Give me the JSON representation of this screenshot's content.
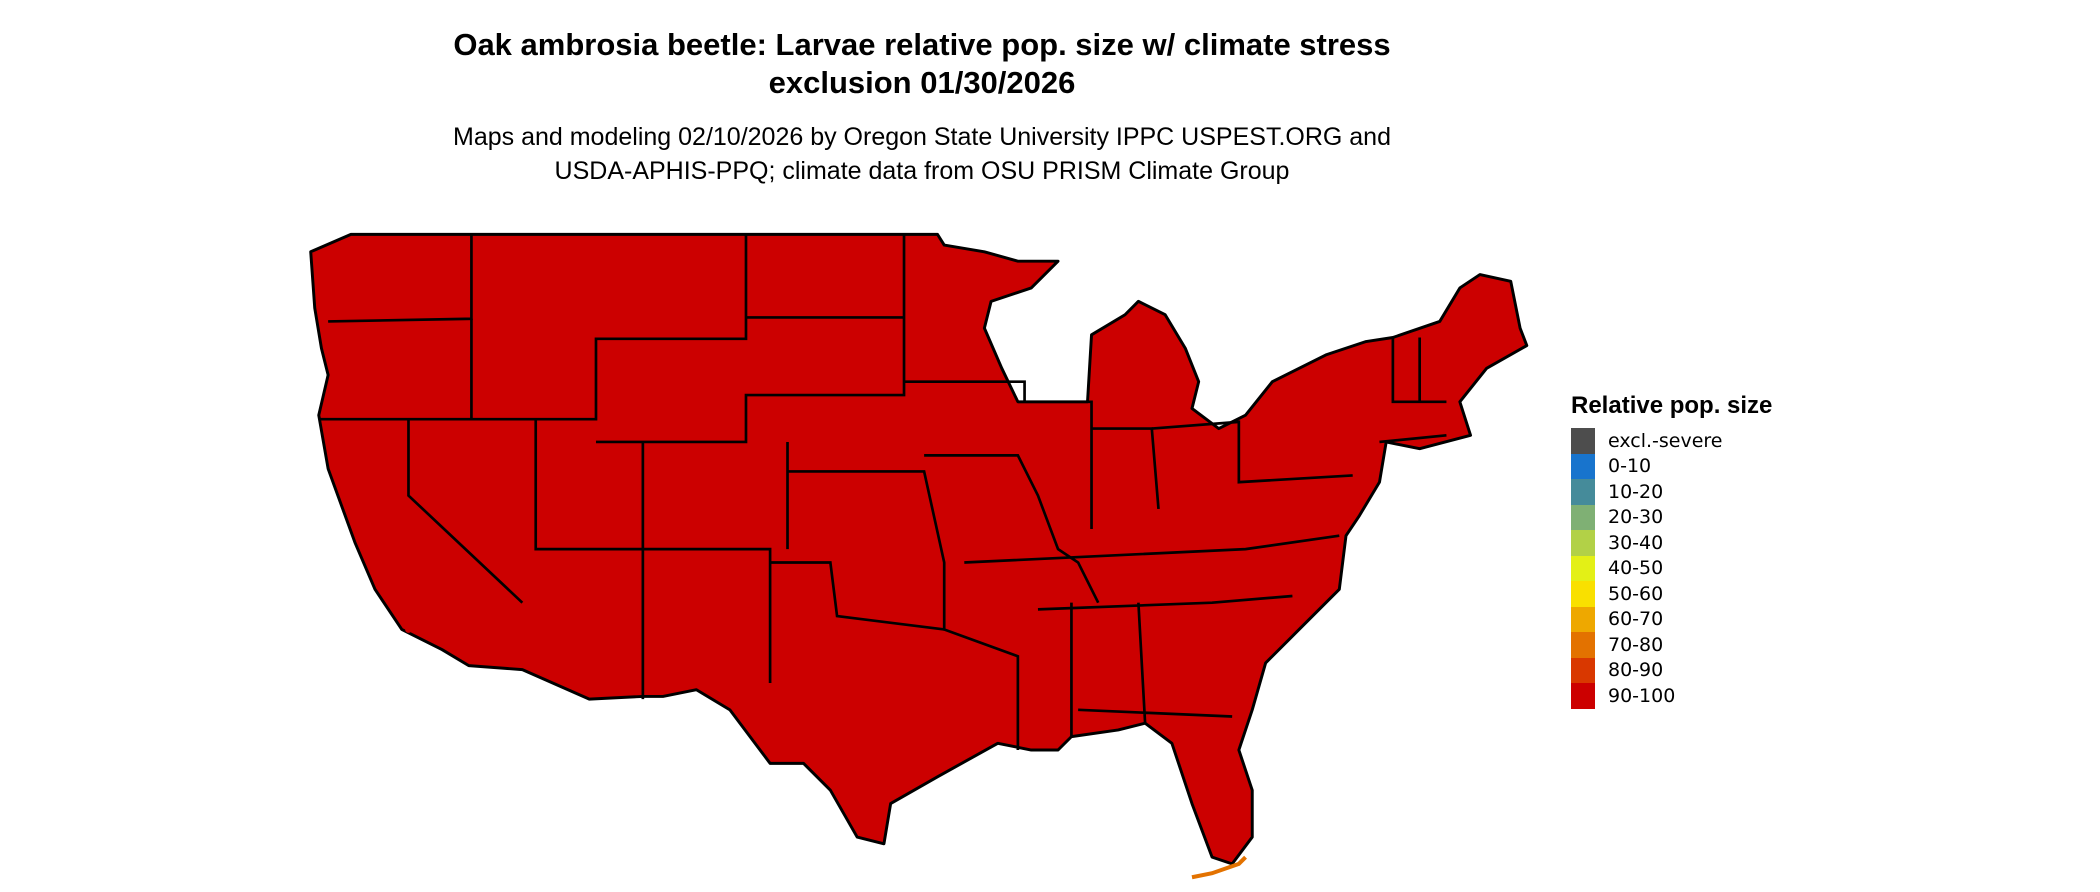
{
  "title": [
    "Oak ambrosia beetle: Larvae relative pop. size w/ climate stress",
    "exclusion 01/30/2026"
  ],
  "subtitle": [
    "Maps and modeling 02/10/2026 by Oregon State University IPPC USPEST.ORG and",
    "USDA-APHIS-PPQ; climate data from OSU PRISM Climate Group"
  ],
  "map": {
    "region": "Contiguous United States",
    "dominant_class": "90-100",
    "fill_color": "#CC0000",
    "minor_classes_visible": [
      "70-80",
      "80-90"
    ]
  },
  "legend": {
    "title": "Relative pop. size",
    "items": [
      {
        "label": "excl.-severe",
        "color": "#4D4D4D"
      },
      {
        "label": "0-10",
        "color": "#1874CD"
      },
      {
        "label": "10-20",
        "color": "#458B9A"
      },
      {
        "label": "20-30",
        "color": "#7FB074"
      },
      {
        "label": "30-40",
        "color": "#B2D147"
      },
      {
        "label": "40-50",
        "color": "#E3F016"
      },
      {
        "label": "50-60",
        "color": "#F9E000"
      },
      {
        "label": "60-70",
        "color": "#EEA800"
      },
      {
        "label": "70-80",
        "color": "#E37200"
      },
      {
        "label": "80-90",
        "color": "#D93800"
      },
      {
        "label": "90-100",
        "color": "#CC0000"
      }
    ]
  }
}
